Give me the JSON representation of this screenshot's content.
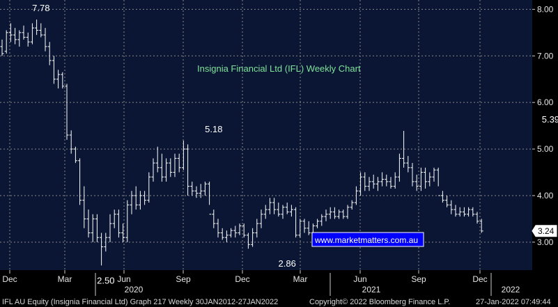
{
  "chart_data": {
    "type": "ohlc",
    "title": "Insignia Financial  Ltd (IFL) Weekly Chart",
    "xlabel": "",
    "ylabel": "",
    "ylim": [
      2.4,
      8.2
    ],
    "yticks": [
      3.0,
      4.0,
      5.0,
      6.0,
      7.0,
      8.0
    ],
    "ytick_labels": [
      "3.00",
      "4.00",
      "5.00",
      "6.00",
      "7.00",
      "8.00"
    ],
    "x_month_labels": [
      "Dec",
      "Mar",
      "Jun",
      "Sep",
      "Dec",
      "Mar",
      "Jun",
      "Sep",
      "Dec"
    ],
    "x_year_labels": [
      "2020",
      "2021",
      "2022"
    ],
    "grid": true,
    "last_price_label": "3.24",
    "last_price": 3.24,
    "annotations": [
      {
        "text": "7.78",
        "week": 9,
        "value": 7.78
      },
      {
        "text": "2.50",
        "week": 24,
        "value": 2.5
      },
      {
        "text": "5.18",
        "week": 49,
        "value": 5.18
      },
      {
        "text": "2.86",
        "week": 66,
        "value": 2.86
      },
      {
        "text": "5.39",
        "week": 127,
        "value": 5.39
      }
    ],
    "series": [
      {
        "values": [
          [
            7.2,
            7.35,
            7.0,
            7.05
          ],
          [
            7.1,
            7.55,
            7.05,
            7.5
          ],
          [
            7.5,
            7.7,
            7.3,
            7.45
          ],
          [
            7.45,
            7.6,
            7.25,
            7.35
          ],
          [
            7.35,
            7.55,
            7.2,
            7.5
          ],
          [
            7.5,
            7.65,
            7.35,
            7.4
          ],
          [
            7.4,
            7.5,
            7.2,
            7.3
          ],
          [
            7.3,
            7.7,
            7.25,
            7.6
          ],
          [
            7.6,
            7.78,
            7.45,
            7.55
          ],
          [
            7.55,
            7.7,
            7.4,
            7.45
          ],
          [
            7.45,
            7.6,
            7.1,
            7.2
          ],
          [
            7.2,
            7.3,
            6.8,
            6.9
          ],
          [
            6.9,
            7.0,
            6.4,
            6.5
          ],
          [
            6.5,
            6.7,
            6.3,
            6.6
          ],
          [
            6.6,
            6.65,
            6.3,
            6.35
          ],
          [
            6.35,
            6.4,
            5.2,
            5.3
          ],
          [
            5.3,
            5.4,
            4.9,
            5.0
          ],
          [
            5.0,
            5.05,
            4.7,
            4.75
          ],
          [
            4.75,
            4.8,
            3.8,
            3.9
          ],
          [
            3.9,
            4.2,
            3.3,
            3.5
          ],
          [
            3.5,
            3.7,
            3.1,
            3.2
          ],
          [
            3.2,
            3.6,
            3.0,
            3.5
          ],
          [
            3.5,
            3.6,
            3.0,
            3.1
          ],
          [
            3.1,
            3.2,
            2.5,
            2.9
          ],
          [
            2.9,
            3.2,
            2.8,
            3.1
          ],
          [
            3.1,
            3.6,
            3.0,
            3.4
          ],
          [
            3.4,
            3.7,
            3.3,
            3.6
          ],
          [
            3.6,
            3.7,
            3.1,
            3.2
          ],
          [
            3.2,
            3.4,
            3.0,
            3.1
          ],
          [
            3.1,
            3.9,
            3.0,
            3.8
          ],
          [
            3.8,
            4.1,
            3.6,
            4.0
          ],
          [
            4.0,
            4.2,
            3.7,
            3.8
          ],
          [
            3.8,
            4.1,
            3.7,
            4.0
          ],
          [
            4.0,
            4.1,
            3.8,
            3.9
          ],
          [
            3.9,
            4.5,
            3.85,
            4.4
          ],
          [
            4.4,
            4.8,
            4.3,
            4.7
          ],
          [
            4.7,
            5.05,
            4.5,
            4.6
          ],
          [
            4.6,
            4.9,
            4.3,
            4.4
          ],
          [
            4.4,
            4.8,
            4.3,
            4.7
          ],
          [
            4.7,
            4.8,
            4.4,
            4.5
          ],
          [
            4.5,
            4.9,
            4.4,
            4.8
          ],
          [
            4.8,
            4.9,
            4.5,
            4.6
          ],
          [
            4.6,
            5.18,
            4.55,
            5.0
          ],
          [
            5.0,
            5.1,
            4.0,
            4.2
          ],
          [
            4.2,
            4.3,
            4.0,
            4.1
          ],
          [
            4.1,
            4.2,
            3.95,
            4.05
          ],
          [
            4.05,
            4.25,
            3.95,
            4.1
          ],
          [
            4.1,
            4.3,
            4.0,
            4.25
          ],
          [
            4.25,
            4.3,
            3.8,
            3.6
          ],
          [
            3.6,
            3.7,
            3.3,
            3.4
          ],
          [
            3.4,
            3.5,
            3.1,
            3.2
          ],
          [
            3.2,
            3.3,
            3.05,
            3.1
          ],
          [
            3.1,
            3.25,
            3.0,
            3.15
          ],
          [
            3.15,
            3.3,
            3.1,
            3.25
          ],
          [
            3.25,
            3.35,
            3.1,
            3.2
          ],
          [
            3.2,
            3.4,
            3.15,
            3.35
          ],
          [
            3.35,
            3.4,
            3.1,
            3.15
          ],
          [
            3.15,
            3.2,
            2.86,
            2.95
          ],
          [
            2.95,
            3.3,
            2.9,
            3.2
          ],
          [
            3.2,
            3.5,
            3.1,
            3.4
          ],
          [
            3.4,
            3.7,
            3.3,
            3.6
          ],
          [
            3.6,
            3.8,
            3.5,
            3.7
          ],
          [
            3.7,
            3.95,
            3.6,
            3.85
          ],
          [
            3.85,
            3.95,
            3.6,
            3.7
          ],
          [
            3.7,
            3.85,
            3.55,
            3.6
          ],
          [
            3.6,
            3.8,
            3.5,
            3.75
          ],
          [
            3.75,
            3.85,
            3.6,
            3.65
          ],
          [
            3.65,
            3.8,
            3.55,
            3.7
          ],
          [
            3.7,
            3.75,
            3.1,
            3.15
          ],
          [
            3.15,
            3.5,
            3.1,
            3.45
          ],
          [
            3.45,
            3.5,
            3.2,
            3.3
          ],
          [
            3.3,
            3.45,
            3.15,
            3.2
          ],
          [
            3.2,
            3.4,
            3.15,
            3.35
          ],
          [
            3.35,
            3.5,
            3.3,
            3.45
          ],
          [
            3.45,
            3.6,
            3.35,
            3.55
          ],
          [
            3.55,
            3.7,
            3.45,
            3.6
          ],
          [
            3.6,
            3.75,
            3.5,
            3.65
          ],
          [
            3.65,
            3.75,
            3.5,
            3.55
          ],
          [
            3.55,
            3.7,
            3.5,
            3.65
          ],
          [
            3.65,
            3.7,
            3.5,
            3.55
          ],
          [
            3.55,
            3.8,
            3.5,
            3.75
          ],
          [
            3.75,
            3.9,
            3.7,
            3.85
          ],
          [
            3.85,
            4.2,
            3.8,
            4.1
          ],
          [
            4.1,
            4.5,
            4.0,
            4.4
          ],
          [
            4.4,
            4.5,
            4.1,
            4.2
          ],
          [
            4.2,
            4.4,
            4.1,
            4.3
          ],
          [
            4.3,
            4.45,
            4.15,
            4.25
          ],
          [
            4.25,
            4.4,
            4.1,
            4.3
          ],
          [
            4.3,
            4.5,
            4.2,
            4.35
          ],
          [
            4.35,
            4.45,
            4.2,
            4.3
          ],
          [
            4.3,
            4.4,
            4.15,
            4.2
          ],
          [
            4.2,
            4.5,
            4.15,
            4.4
          ],
          [
            4.4,
            4.9,
            4.3,
            4.8
          ],
          [
            4.8,
            5.39,
            4.6,
            4.7
          ],
          [
            4.7,
            4.85,
            4.5,
            4.6
          ],
          [
            4.6,
            4.7,
            4.2,
            4.3
          ],
          [
            4.3,
            4.45,
            4.1,
            4.2
          ],
          [
            4.2,
            4.6,
            4.1,
            4.5
          ],
          [
            4.5,
            4.6,
            4.15,
            4.3
          ],
          [
            4.3,
            4.5,
            4.2,
            4.4
          ],
          [
            4.4,
            4.6,
            4.3,
            4.55
          ],
          [
            4.55,
            4.6,
            4.2,
            4.0
          ],
          [
            4.0,
            4.1,
            3.85,
            3.9
          ],
          [
            3.9,
            4.0,
            3.75,
            3.8
          ],
          [
            3.8,
            3.9,
            3.6,
            3.7
          ],
          [
            3.7,
            3.8,
            3.55,
            3.6
          ],
          [
            3.6,
            3.75,
            3.55,
            3.65
          ],
          [
            3.65,
            3.75,
            3.55,
            3.6
          ],
          [
            3.6,
            3.75,
            3.55,
            3.7
          ],
          [
            3.7,
            3.75,
            3.55,
            3.6
          ],
          [
            3.6,
            3.65,
            3.4,
            3.45
          ],
          [
            3.45,
            3.5,
            3.2,
            3.24
          ]
        ]
      }
    ]
  },
  "footer": {
    "left": "IFL AU Equity (Insignia Financial Ltd) Graph 217  Weekly 30JAN2012-27JAN2022",
    "center": "Copyright© 2022 Bloomberg Finance L.P.",
    "right": "27-Jan-2022 07:49:44"
  },
  "watermark": "www.marketmatters.com.au",
  "colors": {
    "background": "#000000",
    "plot_background": "#0a1633",
    "bars": "#ffffff",
    "grid": "#8a8a8a",
    "title": "#7fe39a",
    "watermark_border": "#ffffff"
  }
}
